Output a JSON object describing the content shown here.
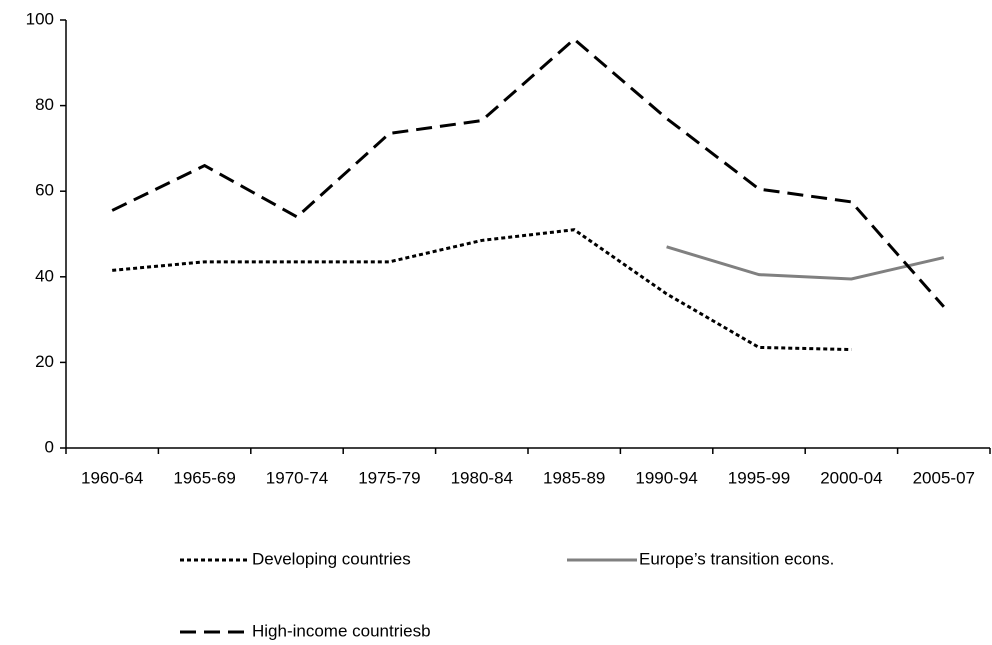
{
  "chart_data": {
    "type": "line",
    "categories": [
      "1960-64",
      "1965-69",
      "1970-74",
      "1975-79",
      "1980-84",
      "1985-89",
      "1990-94",
      "1995-99",
      "2000-04",
      "2005-07"
    ],
    "series": [
      {
        "name": "Developing countries",
        "color": "#000000",
        "style": "dotted",
        "values": [
          41.5,
          43.5,
          43.5,
          43.5,
          48.5,
          51,
          36,
          23.5,
          23,
          null
        ]
      },
      {
        "name": "Europe’s transition econs.",
        "color": "#808080",
        "style": "solid",
        "values": [
          null,
          null,
          null,
          null,
          null,
          null,
          47,
          40.5,
          39.5,
          44.5
        ]
      },
      {
        "name": "High-income countriesb",
        "color": "#000000",
        "style": "dashed",
        "values": [
          55.5,
          66,
          54,
          73.5,
          76.5,
          95.5,
          77,
          60.5,
          57.5,
          33
        ]
      }
    ],
    "ylim": [
      0,
      100
    ],
    "yticks": [
      0,
      20,
      40,
      60,
      80,
      100
    ],
    "grid": false,
    "legend": "bottom"
  }
}
